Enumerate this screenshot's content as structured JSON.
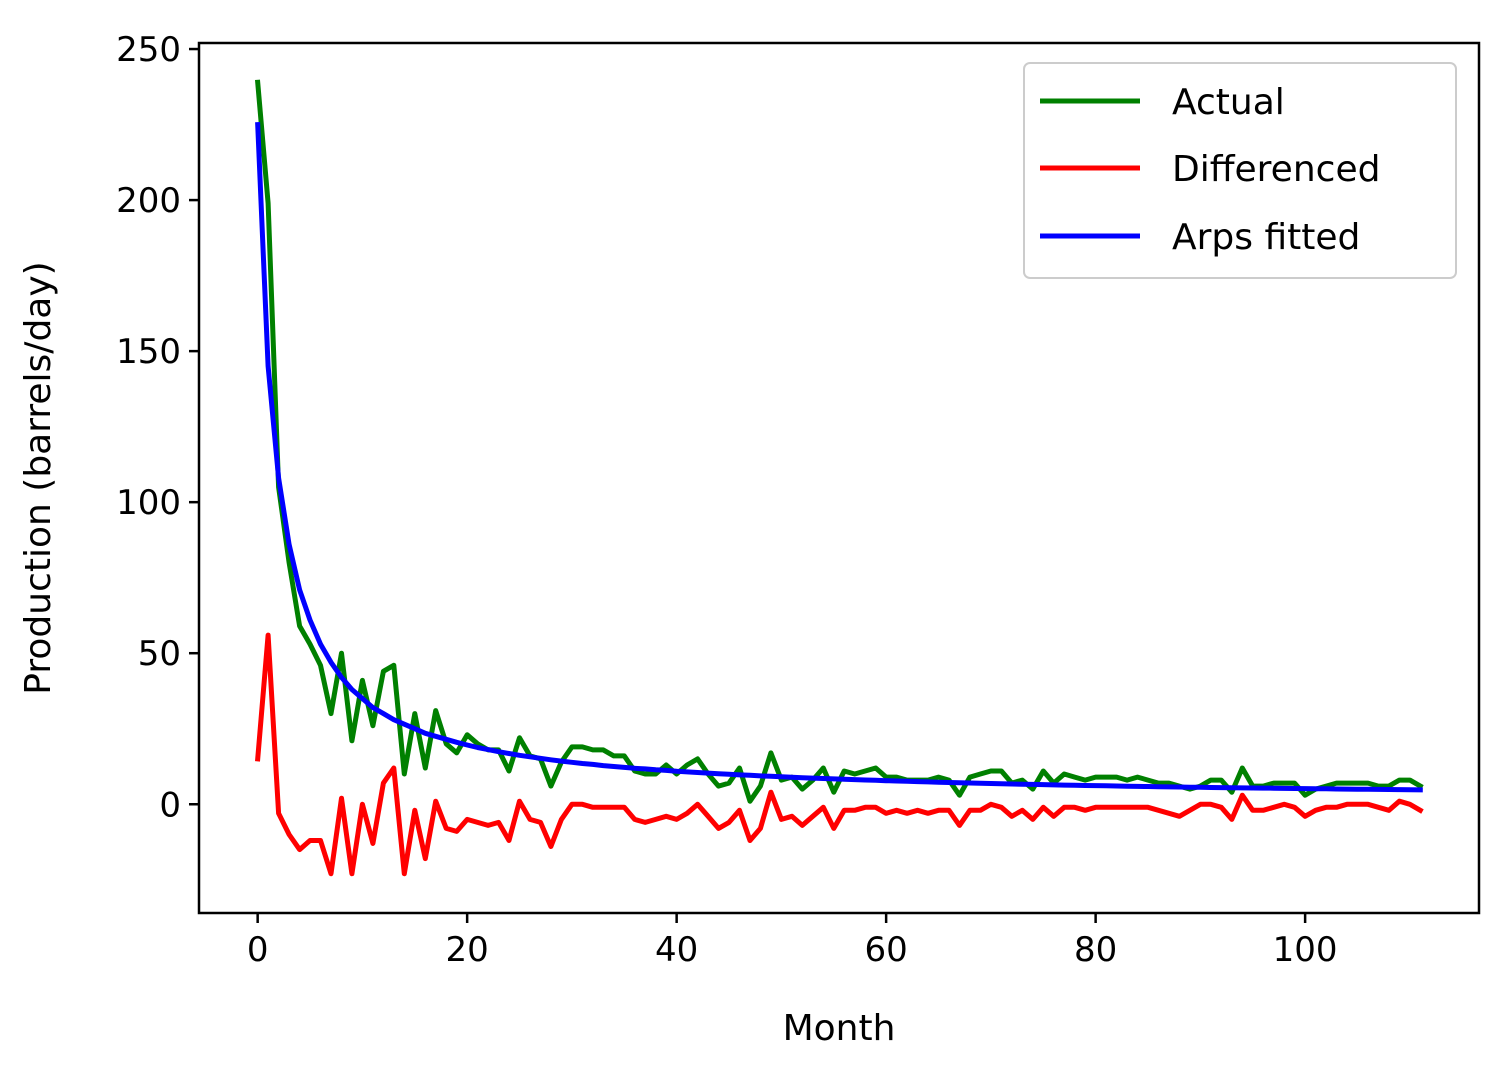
{
  "chart_data": {
    "type": "line",
    "title": "",
    "xlabel": "Month",
    "ylabel": "Production (barrels/day)",
    "xlim": [
      -5.6,
      116.6
    ],
    "ylim": [
      -36,
      252
    ],
    "xticks": [
      0,
      20,
      40,
      60,
      80,
      100
    ],
    "xtick_labels": [
      "0",
      "20",
      "40",
      "60",
      "80",
      "100"
    ],
    "yticks": [
      0,
      50,
      100,
      150,
      200,
      250
    ],
    "ytick_labels": [
      "0",
      "50",
      "100",
      "150",
      "200",
      "250"
    ],
    "grid": false,
    "legend_position": "top-right",
    "series": [
      {
        "name": "Actual",
        "color": "#008000",
        "values": [
          239,
          199,
          105,
          80,
          59,
          53,
          46,
          30,
          50,
          21,
          41,
          26,
          44,
          46,
          10,
          30,
          12,
          31,
          20,
          17,
          23,
          20,
          18,
          18,
          11,
          22,
          16,
          15,
          6,
          14,
          19,
          19,
          18,
          18,
          16,
          16,
          11,
          10,
          10,
          13,
          10,
          13,
          15,
          10,
          6,
          7,
          12,
          1,
          6,
          17,
          8,
          9,
          5,
          8,
          12,
          4,
          11,
          10,
          11,
          12,
          9,
          9,
          8,
          8,
          8,
          9,
          8,
          3,
          9,
          10,
          11,
          11,
          7,
          8,
          5,
          11,
          7,
          10,
          9,
          8,
          9,
          9,
          9,
          8,
          9,
          8,
          7,
          7,
          6,
          5,
          6,
          8,
          8,
          4,
          12,
          6,
          6,
          7,
          7,
          7,
          3,
          5,
          6,
          7,
          7,
          7,
          7,
          6,
          6,
          8,
          8,
          6
        ]
      },
      {
        "name": "Differenced",
        "color": "#ff0000",
        "values": [
          15,
          56,
          -3,
          -10,
          -15,
          -12,
          -12,
          -23,
          2,
          -23,
          0,
          -13,
          7,
          12,
          -23,
          -2,
          -18,
          1,
          -8,
          -9,
          -5,
          -6,
          -7,
          -6,
          -12,
          1,
          -5,
          -6,
          -14,
          -5,
          0,
          0,
          -1,
          -1,
          -1,
          -1,
          -5,
          -6,
          -5,
          -4,
          -5,
          -3,
          0,
          -4,
          -8,
          -6,
          -2,
          -12,
          -8,
          4,
          -5,
          -4,
          -7,
          -4,
          -1,
          -8,
          -2,
          -2,
          -1,
          -1,
          -3,
          -2,
          -3,
          -2,
          -3,
          -2,
          -2,
          -7,
          -2,
          -2,
          0,
          -1,
          -4,
          -2,
          -5,
          -1,
          -4,
          -1,
          -1,
          -2,
          -1,
          -1,
          -1,
          -1,
          -1,
          -1,
          -2,
          -3,
          -4,
          -2,
          0,
          0,
          -1,
          -5,
          3,
          -2,
          -2,
          -1,
          0,
          -1,
          -4,
          -2,
          -1,
          -1,
          0,
          0,
          0,
          -1,
          -2,
          1,
          0,
          -2
        ]
      },
      {
        "name": "Arps fitted",
        "color": "#0000ff",
        "values": [
          225,
          145,
          108,
          86,
          71,
          61,
          53,
          47,
          42,
          38,
          35,
          32,
          30,
          28,
          26.5,
          25,
          23.5,
          22.5,
          21.5,
          20.5,
          19.6,
          18.8,
          18.1,
          17.4,
          16.8,
          16.2,
          15.7,
          15.2,
          14.7,
          14.3,
          13.9,
          13.5,
          13.2,
          12.8,
          12.5,
          12.2,
          11.9,
          11.7,
          11.4,
          11.2,
          10.9,
          10.7,
          10.5,
          10.3,
          10.1,
          9.9,
          9.7,
          9.6,
          9.4,
          9.25,
          9.1,
          8.95,
          8.8,
          8.66,
          8.53,
          8.4,
          8.27,
          8.15,
          8.03,
          7.92,
          7.81,
          7.7,
          7.6,
          7.5,
          7.4,
          7.3,
          7.21,
          7.12,
          7.03,
          6.95,
          6.87,
          6.79,
          6.71,
          6.63,
          6.56,
          6.49,
          6.42,
          6.35,
          6.28,
          6.22,
          6.16,
          6.1,
          6.04,
          5.98,
          5.92,
          5.87,
          5.81,
          5.76,
          5.71,
          5.66,
          5.61,
          5.56,
          5.51,
          5.47,
          5.42,
          5.38,
          5.34,
          5.3,
          5.26,
          5.22,
          5.18,
          5.14,
          5.1,
          5.06,
          5.03,
          4.99,
          4.96,
          4.92,
          4.89,
          4.86,
          4.83,
          4.8
        ]
      }
    ]
  }
}
